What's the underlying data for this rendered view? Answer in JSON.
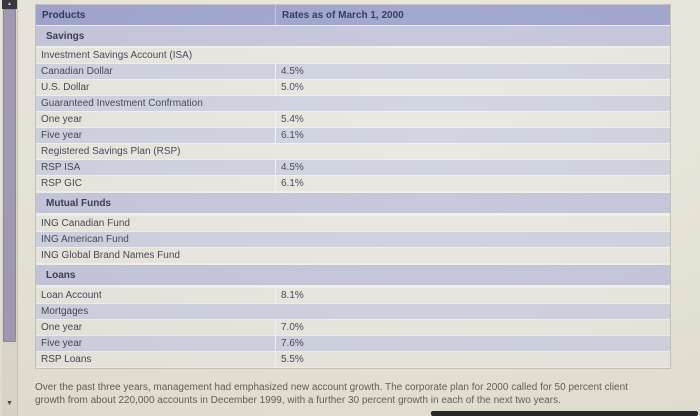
{
  "table": {
    "header": {
      "col1": "Products",
      "col2": "Rates as of March 1, 2000"
    },
    "sections": [
      {
        "title": "Savings",
        "rows": [
          {
            "label": "Investment Savings Account (ISA)",
            "rate": ""
          },
          {
            "label": "Canadian Dollar",
            "rate": "4.5%"
          },
          {
            "label": "U.S. Dollar",
            "rate": "5.0%"
          },
          {
            "label": "Guaranteed Investment Confrmation",
            "rate": ""
          },
          {
            "label": "One year",
            "rate": "5.4%"
          },
          {
            "label": "Five year",
            "rate": "6.1%"
          },
          {
            "label": "Registered Savings Plan (RSP)",
            "rate": ""
          },
          {
            "label": "RSP ISA",
            "rate": "4.5%"
          },
          {
            "label": "RSP GIC",
            "rate": "6.1%"
          }
        ]
      },
      {
        "title": "Mutual Funds",
        "rows": [
          {
            "label": "ING Canadian Fund",
            "rate": ""
          },
          {
            "label": "ING American Fund",
            "rate": ""
          },
          {
            "label": "ING Global Brand Names Fund",
            "rate": ""
          }
        ]
      },
      {
        "title": "Loans",
        "rows": [
          {
            "label": "Loan Account",
            "rate": "8.1%"
          },
          {
            "label": "Mortgages",
            "rate": ""
          },
          {
            "label": "One year",
            "rate": "7.0%"
          },
          {
            "label": "Five year",
            "rate": "7.6%"
          },
          {
            "label": "RSP Loans",
            "rate": "5.5%"
          }
        ]
      }
    ]
  },
  "paragraph": "Over the past three years, management had emphasized new account growth. The corporate plan for 2000 called for 50 percent client growth from about 220,000 accounts in December 1999, with a further 30 percent growth in each of the next two years.",
  "icons": {
    "scroll_up": "▲",
    "scroll_down": "▼"
  },
  "colors": {
    "header_bg": "#9fa4d0",
    "section_header_bg": "#c4c6dc",
    "row_blue_bg": "#cfd2e0",
    "row_cream_bg": "#e9e7df",
    "scrollbar_thumb": "#a19ab6",
    "page_bg": "#e8e5d9",
    "dark_bar": "#232326"
  }
}
